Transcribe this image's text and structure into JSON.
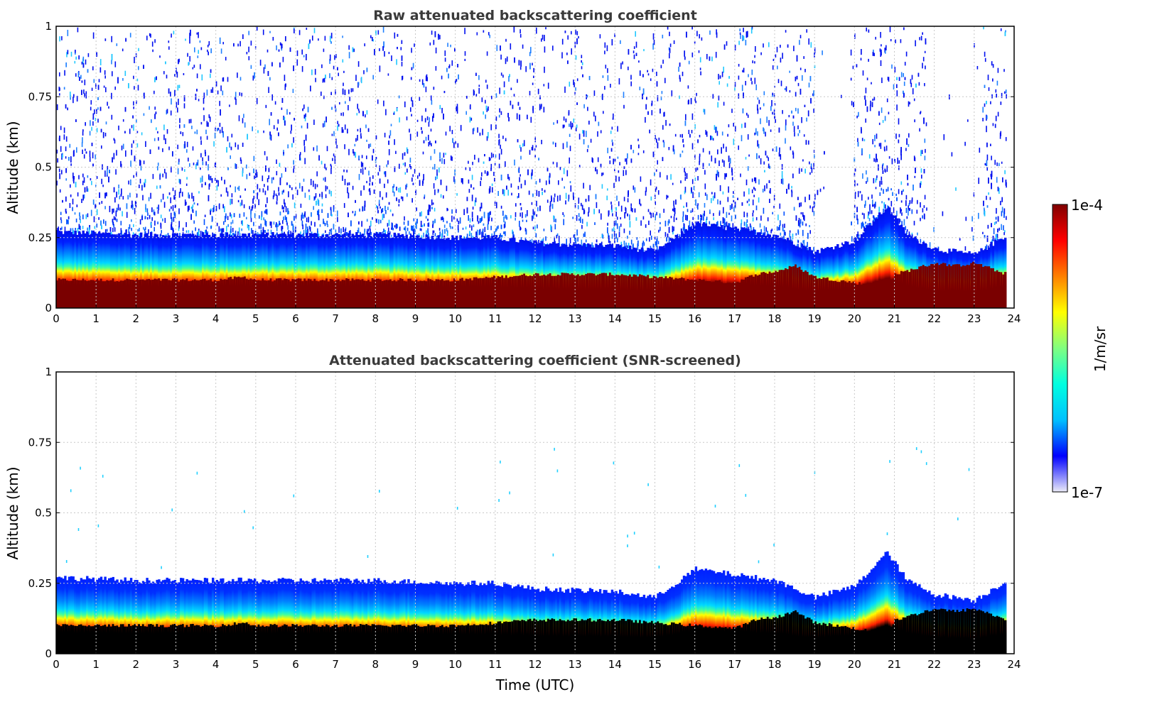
{
  "chart_data": [
    {
      "type": "heatmap",
      "title": "Raw attenuated backscattering coefficient",
      "xlabel": "",
      "ylabel": "Altitude (km)",
      "xlim": [
        0,
        24
      ],
      "ylim": [
        0,
        1
      ],
      "xticks": [
        "0",
        "1",
        "2",
        "3",
        "4",
        "5",
        "6",
        "7",
        "8",
        "9",
        "10",
        "11",
        "12",
        "13",
        "14",
        "15",
        "16",
        "17",
        "18",
        "19",
        "20",
        "21",
        "22",
        "23",
        "24"
      ],
      "yticks": [
        "0",
        "0.25",
        "0.5",
        "0.75",
        "1"
      ],
      "ytick_values": [
        0,
        0.25,
        0.5,
        0.75,
        1
      ],
      "grid": true,
      "screened": false,
      "layer_top_km": [
        [
          0,
          0.1
        ],
        [
          1,
          0.1
        ],
        [
          2,
          0.1
        ],
        [
          3,
          0.1
        ],
        [
          4,
          0.1
        ],
        [
          4.7,
          0.11
        ],
        [
          5,
          0.1
        ],
        [
          6,
          0.1
        ],
        [
          7,
          0.1
        ],
        [
          8,
          0.1
        ],
        [
          9,
          0.1
        ],
        [
          10,
          0.1
        ],
        [
          11,
          0.11
        ],
        [
          12,
          0.12
        ],
        [
          13,
          0.12
        ],
        [
          14,
          0.12
        ],
        [
          15,
          0.11
        ],
        [
          16,
          0.1
        ],
        [
          17,
          0.09
        ],
        [
          17.5,
          0.12
        ],
        [
          18,
          0.13
        ],
        [
          18.5,
          0.15
        ],
        [
          19,
          0.11
        ],
        [
          20,
          0.09
        ],
        [
          20.8,
          0.07
        ],
        [
          21,
          0.12
        ],
        [
          22,
          0.16
        ],
        [
          22.5,
          0.15
        ],
        [
          23,
          0.16
        ],
        [
          23.8,
          0.12
        ]
      ],
      "boundary_layer_top_km": [
        [
          0,
          0.27
        ],
        [
          2,
          0.26
        ],
        [
          4,
          0.26
        ],
        [
          6,
          0.26
        ],
        [
          8,
          0.26
        ],
        [
          10,
          0.25
        ],
        [
          11,
          0.25
        ],
        [
          12,
          0.23
        ],
        [
          14,
          0.22
        ],
        [
          15,
          0.2
        ],
        [
          16,
          0.3
        ],
        [
          17,
          0.28
        ],
        [
          18,
          0.26
        ],
        [
          19,
          0.2
        ],
        [
          20,
          0.24
        ],
        [
          20.8,
          0.36
        ],
        [
          21.3,
          0.26
        ],
        [
          22,
          0.21
        ],
        [
          23,
          0.19
        ],
        [
          23.8,
          0.26
        ]
      ]
    },
    {
      "type": "heatmap",
      "title": "Attenuated backscattering coefficient (SNR-screened)",
      "xlabel": "Time (UTC)",
      "ylabel": "Altitude (km)",
      "xlim": [
        0,
        24
      ],
      "ylim": [
        0,
        1
      ],
      "xticks": [
        "0",
        "1",
        "2",
        "3",
        "4",
        "5",
        "6",
        "7",
        "8",
        "9",
        "10",
        "11",
        "12",
        "13",
        "14",
        "15",
        "16",
        "17",
        "18",
        "19",
        "20",
        "21",
        "22",
        "23",
        "24"
      ],
      "yticks": [
        "0",
        "0.25",
        "0.5",
        "0.75",
        "1"
      ],
      "ytick_values": [
        0,
        0.25,
        0.5,
        0.75,
        1
      ],
      "grid": true,
      "screened": true
    }
  ],
  "colorbar": {
    "label": "1/m/sr",
    "max_label": "1e-4",
    "min_label": "1e-7",
    "scale": "log",
    "range": [
      1e-07,
      0.0001
    ],
    "colormap": [
      "#ececf8",
      "#0000ff",
      "#00c0ff",
      "#00ffe0",
      "#80ff80",
      "#ffff00",
      "#ff8000",
      "#ff0000",
      "#800000"
    ]
  }
}
